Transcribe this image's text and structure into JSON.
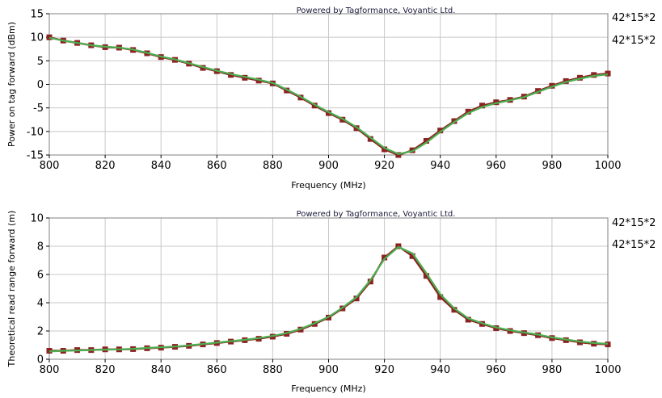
{
  "chart_data": [
    {
      "type": "line",
      "credit": "Powered by Tagformance, Voyantic Ltd.",
      "xlabel": "Frequency (MHz)",
      "ylabel": "Power on tag forward (dBm)",
      "xlim": [
        800,
        1000
      ],
      "ylim": [
        -15,
        15
      ],
      "xticks": [
        800,
        820,
        840,
        860,
        880,
        900,
        920,
        940,
        960,
        980,
        1000
      ],
      "yticks": [
        -15,
        -10,
        -5,
        0,
        5,
        10,
        15
      ],
      "grid": true,
      "legend_position": "right",
      "series": [
        {
          "name": "42*15*2",
          "color": "#8b2323",
          "marker": "square",
          "x": [
            800,
            805,
            810,
            815,
            820,
            825,
            830,
            835,
            840,
            845,
            850,
            855,
            860,
            865,
            870,
            875,
            880,
            885,
            890,
            895,
            900,
            905,
            910,
            915,
            920,
            925,
            930,
            935,
            940,
            945,
            950,
            955,
            960,
            965,
            970,
            975,
            980,
            985,
            990,
            995,
            1000
          ],
          "y": [
            10,
            9.3,
            8.8,
            8.3,
            7.9,
            7.8,
            7.3,
            6.6,
            5.8,
            5.2,
            4.4,
            3.5,
            2.8,
            2.0,
            1.4,
            0.8,
            0.2,
            -1.3,
            -2.8,
            -4.5,
            -6.1,
            -7.5,
            -9.3,
            -11.6,
            -13.8,
            -15.0,
            -14.0,
            -12.0,
            -9.8,
            -7.8,
            -5.8,
            -4.5,
            -3.8,
            -3.3,
            -2.6,
            -1.4,
            -0.3,
            0.7,
            1.4,
            2.0,
            2.3
          ]
        },
        {
          "name": "42*15*2",
          "color": "#4caf50",
          "marker": "none",
          "x": [
            800,
            805,
            810,
            815,
            820,
            825,
            830,
            835,
            840,
            845,
            850,
            855,
            860,
            865,
            870,
            875,
            880,
            885,
            890,
            895,
            900,
            905,
            910,
            915,
            920,
            925,
            930,
            935,
            940,
            945,
            950,
            955,
            960,
            965,
            970,
            975,
            980,
            985,
            990,
            995,
            1000
          ],
          "y": [
            9.9,
            9.3,
            8.8,
            8.3,
            8.0,
            7.8,
            7.4,
            6.7,
            5.9,
            5.3,
            4.5,
            3.7,
            2.9,
            2.2,
            1.6,
            1.0,
            0.3,
            -1.1,
            -2.6,
            -4.3,
            -5.9,
            -7.3,
            -9.1,
            -11.3,
            -13.5,
            -14.8,
            -14.2,
            -12.4,
            -10.1,
            -8.0,
            -6.1,
            -4.8,
            -4.0,
            -3.4,
            -2.7,
            -1.6,
            -0.5,
            0.5,
            1.2,
            1.8,
            2.1
          ]
        }
      ]
    },
    {
      "type": "line",
      "credit": "Powered by Tagformance, Voyantic Ltd.",
      "xlabel": "Frequency (MHz)",
      "ylabel": "Theoretical read range forward (m)",
      "xlim": [
        800,
        1000
      ],
      "ylim": [
        0,
        10
      ],
      "xticks": [
        800,
        820,
        840,
        860,
        880,
        900,
        920,
        940,
        960,
        980,
        1000
      ],
      "yticks": [
        0,
        2,
        4,
        6,
        8,
        10
      ],
      "grid": true,
      "legend_position": "right",
      "series": [
        {
          "name": "42*15*2",
          "color": "#8b2323",
          "marker": "square",
          "x": [
            800,
            805,
            810,
            815,
            820,
            825,
            830,
            835,
            840,
            845,
            850,
            855,
            860,
            865,
            870,
            875,
            880,
            885,
            890,
            895,
            900,
            905,
            910,
            915,
            920,
            925,
            930,
            935,
            940,
            945,
            950,
            955,
            960,
            965,
            970,
            975,
            980,
            985,
            990,
            995,
            1000
          ],
          "y": [
            0.6,
            0.6,
            0.65,
            0.65,
            0.7,
            0.7,
            0.72,
            0.78,
            0.82,
            0.88,
            0.95,
            1.05,
            1.15,
            1.25,
            1.35,
            1.45,
            1.6,
            1.8,
            2.1,
            2.5,
            2.95,
            3.6,
            4.3,
            5.5,
            7.2,
            8.0,
            7.3,
            5.9,
            4.4,
            3.5,
            2.8,
            2.5,
            2.2,
            2.0,
            1.85,
            1.7,
            1.5,
            1.35,
            1.2,
            1.1,
            1.05
          ]
        },
        {
          "name": "42*15*2",
          "color": "#4caf50",
          "marker": "none",
          "x": [
            800,
            805,
            810,
            815,
            820,
            825,
            830,
            835,
            840,
            845,
            850,
            855,
            860,
            865,
            870,
            875,
            880,
            885,
            890,
            895,
            900,
            905,
            910,
            915,
            920,
            925,
            930,
            935,
            940,
            945,
            950,
            955,
            960,
            965,
            970,
            975,
            980,
            985,
            990,
            995,
            1000
          ],
          "y": [
            0.55,
            0.6,
            0.62,
            0.65,
            0.68,
            0.7,
            0.74,
            0.8,
            0.85,
            0.9,
            0.98,
            1.08,
            1.18,
            1.28,
            1.38,
            1.5,
            1.65,
            1.85,
            2.15,
            2.55,
            3.0,
            3.65,
            4.4,
            5.6,
            7.1,
            7.95,
            7.5,
            6.1,
            4.6,
            3.6,
            2.9,
            2.55,
            2.25,
            2.05,
            1.9,
            1.75,
            1.55,
            1.4,
            1.25,
            1.15,
            1.1
          ]
        }
      ]
    }
  ]
}
